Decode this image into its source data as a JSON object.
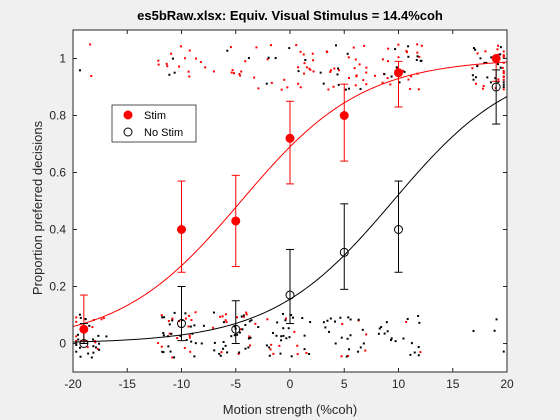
{
  "chart_data": {
    "type": "scatter",
    "title": "es5bRaw.xlsx: Equiv. Visual Stimulus = 14.4%coh",
    "xlabel": "Motion strength (%coh)",
    "ylabel": "Proportion preferred decisions",
    "xlim": [
      -20,
      20
    ],
    "ylim": [
      -0.1,
      1.1
    ],
    "x_ticks": [
      -20,
      -15,
      -10,
      -5,
      0,
      5,
      10,
      15,
      20
    ],
    "y_ticks": [
      0,
      0.2,
      0.4,
      0.6,
      0.8,
      1
    ],
    "x_tick_labels": [
      "-20",
      "-15",
      "-10",
      "-5",
      "0",
      "5",
      "10",
      "15",
      "20"
    ],
    "y_tick_labels": [
      "0",
      "0.2",
      "0.4",
      "0.6",
      "0.8",
      "1"
    ],
    "grid": false,
    "legend": {
      "position": "upper-left",
      "entries": [
        {
          "label": "Stim",
          "color": "#ff0000",
          "marker": "filled-circle"
        },
        {
          "label": "No Stim",
          "color": "#000000",
          "marker": "open-circle"
        }
      ]
    },
    "series": [
      {
        "name": "Stim",
        "color": "#ff0000",
        "x": [
          -19,
          -10,
          -5,
          0,
          5,
          10,
          19
        ],
        "y": [
          0.05,
          0.4,
          0.43,
          0.72,
          0.8,
          0.95,
          1.0
        ],
        "err_low": [
          0.01,
          0.25,
          0.27,
          0.56,
          0.64,
          0.83,
          0.92
        ],
        "err_high": [
          0.17,
          0.57,
          0.59,
          0.85,
          0.91,
          0.99,
          1.0
        ],
        "fit_curve": {
          "bias": -4.5,
          "slope": 0.178,
          "upper": 1.0,
          "lower": 0.0
        }
      },
      {
        "name": "No Stim",
        "color": "#000000",
        "x": [
          -19,
          -10,
          -5,
          0,
          5,
          10,
          19
        ],
        "y": [
          0.0,
          0.07,
          0.05,
          0.17,
          0.32,
          0.4,
          0.9
        ],
        "err_low": [
          0.0,
          0.01,
          0.0,
          0.07,
          0.19,
          0.25,
          0.77
        ],
        "err_high": [
          0.07,
          0.2,
          0.15,
          0.33,
          0.49,
          0.57,
          0.96
        ],
        "fit_curve": {
          "bias": 9.5,
          "slope": 0.178,
          "upper": 1.0,
          "lower": 0.0
        }
      }
    ],
    "raw_trials": {
      "description_colors": {
        "stim": "#ff0000",
        "no_stim": "#000000"
      },
      "jitter_x": 2.2,
      "jitter_y": 0.08,
      "bands": [
        0.97,
        0.03
      ],
      "per_condition": [
        {
          "x": -19,
          "stim_top": 2,
          "stim_bottom": 12,
          "nostim_top": 1,
          "nostim_bottom": 22
        },
        {
          "x": -10,
          "stim_top": 14,
          "stim_bottom": 18,
          "nostim_top": 3,
          "nostim_bottom": 26
        },
        {
          "x": -5,
          "stim_top": 12,
          "stim_bottom": 16,
          "nostim_top": 2,
          "nostim_bottom": 28
        },
        {
          "x": 0,
          "stim_top": 20,
          "stim_bottom": 10,
          "nostim_top": 6,
          "nostim_bottom": 24
        },
        {
          "x": 5,
          "stim_top": 22,
          "stim_bottom": 6,
          "nostim_top": 10,
          "nostim_bottom": 20
        },
        {
          "x": 10,
          "stim_top": 24,
          "stim_bottom": 2,
          "nostim_top": 12,
          "nostim_bottom": 18
        },
        {
          "x": 19,
          "stim_top": 26,
          "stim_bottom": 0,
          "nostim_top": 22,
          "nostim_bottom": 4
        }
      ]
    }
  }
}
